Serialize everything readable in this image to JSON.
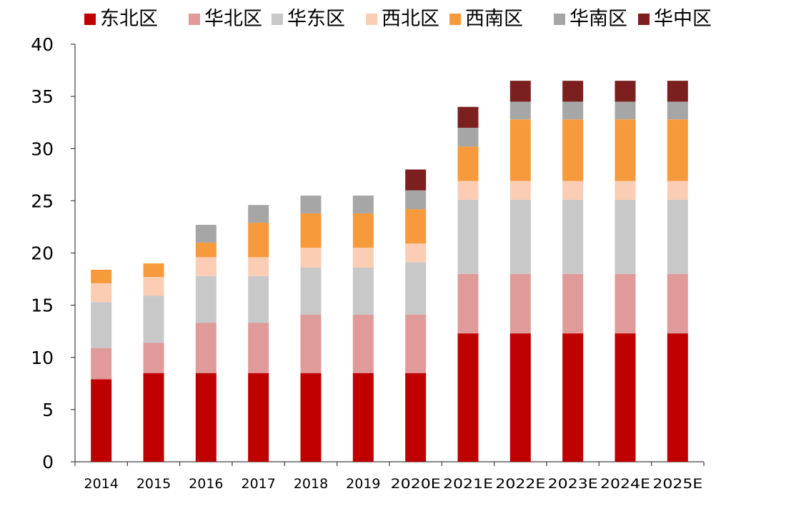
{
  "chart_data": {
    "type": "bar",
    "stacked": true,
    "categories": [
      "2014",
      "2015",
      "2016",
      "2017",
      "2018",
      "2019",
      "2020E",
      "2021E",
      "2022E",
      "2023E",
      "2024E",
      "2025E"
    ],
    "series": [
      {
        "name": "东北区",
        "color": "#c00000",
        "values": [
          7.9,
          8.5,
          8.5,
          8.5,
          8.5,
          8.5,
          8.5,
          12.3,
          12.3,
          12.3,
          12.3,
          12.3
        ]
      },
      {
        "name": "华北区",
        "color": "#e09a9a",
        "values": [
          3.0,
          2.9,
          4.8,
          4.8,
          5.6,
          5.6,
          5.6,
          5.7,
          5.7,
          5.7,
          5.7,
          5.7
        ]
      },
      {
        "name": "华东区",
        "color": "#c8c8c8",
        "values": [
          4.4,
          4.5,
          4.5,
          4.5,
          4.5,
          4.5,
          5.0,
          7.1,
          7.1,
          7.1,
          7.1,
          7.1
        ]
      },
      {
        "name": "西北区",
        "color": "#fbcdb4",
        "values": [
          1.8,
          1.8,
          1.8,
          1.8,
          1.9,
          1.9,
          1.8,
          1.8,
          1.8,
          1.8,
          1.8,
          1.8
        ]
      },
      {
        "name": "西南区",
        "color": "#f79a3c",
        "values": [
          1.3,
          1.3,
          1.4,
          3.3,
          3.3,
          3.3,
          3.3,
          3.3,
          5.9,
          5.9,
          5.9,
          5.9
        ]
      },
      {
        "name": "华南区",
        "color": "#a6a6a6",
        "values": [
          0,
          0,
          1.7,
          1.7,
          1.7,
          1.7,
          1.8,
          1.8,
          1.7,
          1.7,
          1.7,
          1.7
        ]
      },
      {
        "name": "华中区",
        "color": "#7b1f1f",
        "values": [
          0,
          0,
          0,
          0,
          0,
          0,
          2.0,
          2.0,
          2.0,
          2.0,
          2.0,
          2.0
        ]
      }
    ],
    "title": "",
    "xlabel": "",
    "ylabel": "",
    "ylim": [
      0,
      40
    ],
    "yticks": [
      0,
      5,
      10,
      15,
      20,
      25,
      30,
      35,
      40
    ],
    "grid": false,
    "legend": "top"
  }
}
